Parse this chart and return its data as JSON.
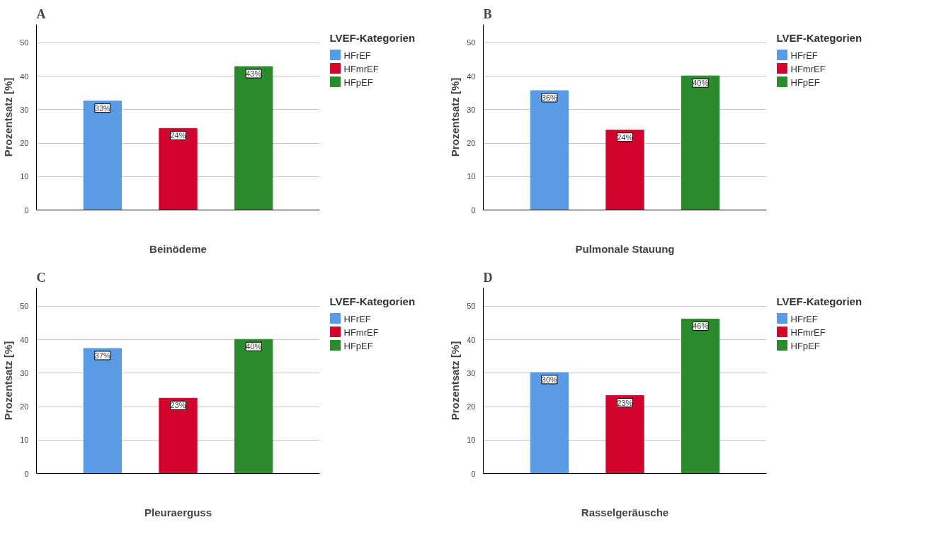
{
  "chart_data": [
    {
      "type": "bar",
      "xlabel": "Beinödeme",
      "ylabel": "Prozentsatz [%]",
      "legend_title": "LVEF-Kategorien",
      "categories": [
        null
      ],
      "ylim": [
        0,
        55.5
      ],
      "yticks": [
        0,
        10,
        20,
        30,
        40,
        50
      ],
      "grid": "y",
      "legend": "top right",
      "tick_labels": "y",
      "annotations": [
        "A"
      ],
      "series": [
        {
          "name": "HFrEF",
          "color": "#5a9be6",
          "values": [
            32.6
          ],
          "value_labels": [
            "33%"
          ]
        },
        {
          "name": "HFmrEF",
          "color": "#d2042d",
          "values": [
            24.4
          ],
          "value_labels": [
            "24%"
          ]
        },
        {
          "name": "HFpEF",
          "color": "#2b8a2b",
          "values": [
            42.9
          ],
          "value_labels": [
            "43%"
          ]
        }
      ]
    },
    {
      "type": "bar",
      "xlabel": "Pulmonale Stauung",
      "ylabel": "Prozentsatz [%]",
      "legend_title": "LVEF-Kategorien",
      "categories": [
        null
      ],
      "ylim": [
        0,
        55.5
      ],
      "yticks": [
        0,
        10,
        20,
        30,
        40,
        50
      ],
      "grid": "y",
      "legend": "top right",
      "tick_labels": "y",
      "annotations": [
        "B"
      ],
      "series": [
        {
          "name": "HFrEF",
          "color": "#5a9be6",
          "values": [
            35.7
          ],
          "value_labels": [
            "36%"
          ]
        },
        {
          "name": "HFmrEF",
          "color": "#d2042d",
          "values": [
            23.9
          ],
          "value_labels": [
            "24%"
          ]
        },
        {
          "name": "HFpEF",
          "color": "#2b8a2b",
          "values": [
            40.1
          ],
          "value_labels": [
            "40%"
          ]
        }
      ]
    },
    {
      "type": "bar",
      "xlabel": "Pleuraerguss",
      "ylabel": "Prozentsatz [%]",
      "legend_title": "LVEF-Kategorien",
      "categories": [
        null
      ],
      "ylim": [
        0,
        55.5
      ],
      "yticks": [
        0,
        10,
        20,
        30,
        40,
        50
      ],
      "grid": "y",
      "legend": "top right",
      "tick_labels": "y",
      "annotations": [
        "C"
      ],
      "series": [
        {
          "name": "HFrEF",
          "color": "#5a9be6",
          "values": [
            37.4
          ],
          "value_labels": [
            "37%"
          ]
        },
        {
          "name": "HFmrEF",
          "color": "#d2042d",
          "values": [
            22.5
          ],
          "value_labels": [
            "23%"
          ]
        },
        {
          "name": "HFpEF",
          "color": "#2b8a2b",
          "values": [
            40.1
          ],
          "value_labels": [
            "40%"
          ]
        }
      ]
    },
    {
      "type": "bar",
      "xlabel": "Rasselgeräusche",
      "ylabel": "Prozentsatz [%]",
      "legend_title": "LVEF-Kategorien",
      "categories": [
        null
      ],
      "ylim": [
        0,
        55.5
      ],
      "yticks": [
        0,
        10,
        20,
        30,
        40,
        50
      ],
      "grid": "y",
      "legend": "top right",
      "tick_labels": "y",
      "annotations": [
        "D"
      ],
      "series": [
        {
          "name": "HFrEF",
          "color": "#5a9be6",
          "values": [
            30.2
          ],
          "value_labels": [
            "30%"
          ]
        },
        {
          "name": "HFmrEF",
          "color": "#d2042d",
          "values": [
            23.3
          ],
          "value_labels": [
            "23%"
          ]
        },
        {
          "name": "HFpEF",
          "color": "#2b8a2b",
          "values": [
            46.2
          ],
          "value_labels": [
            "46%"
          ]
        }
      ]
    }
  ]
}
